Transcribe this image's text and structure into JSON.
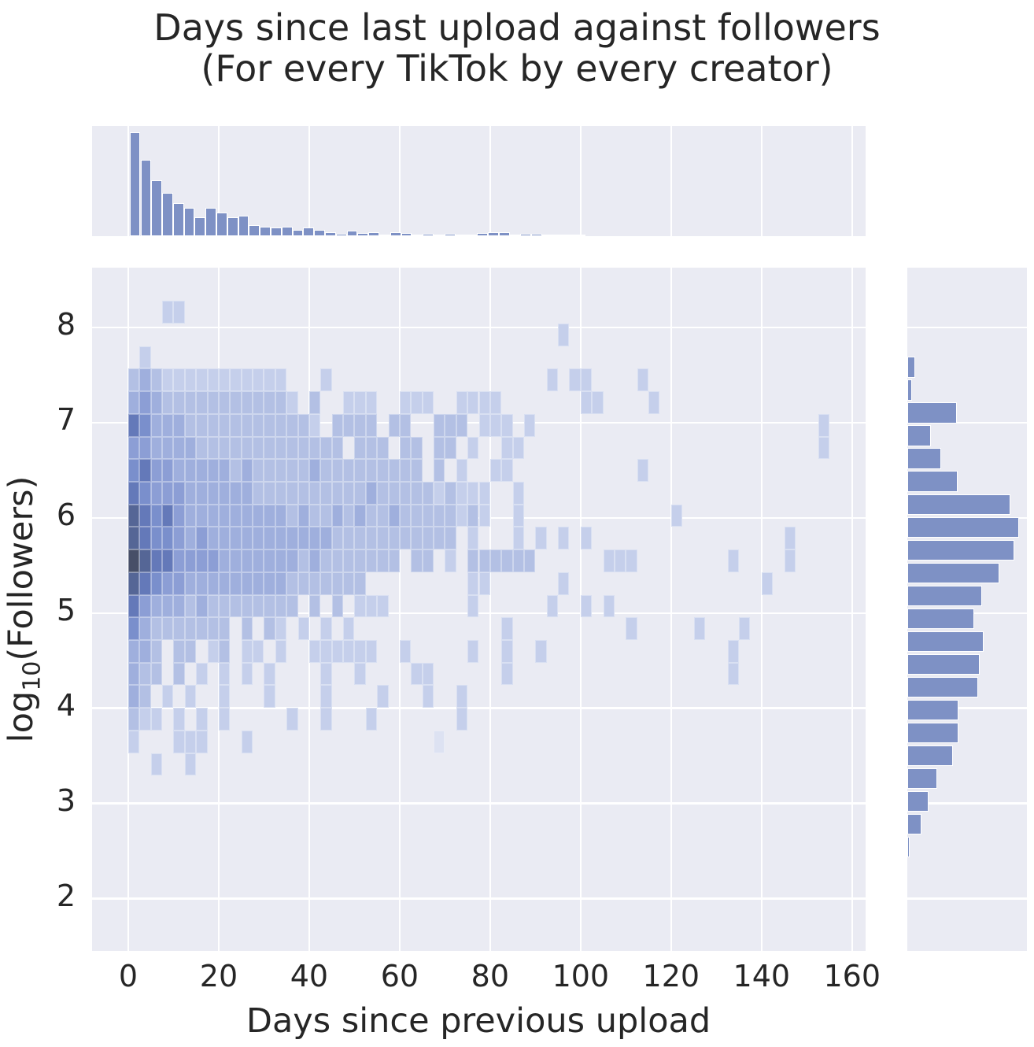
{
  "title": {
    "line1": "Days since last upload against followers",
    "line2": "(For every TikTok by every creator)"
  },
  "axes": {
    "x_label": "Days since previous upload",
    "y_label": {
      "prefix": "log",
      "subscript": "10",
      "suffix": "(Followers)"
    },
    "x_ticks": [
      0,
      20,
      40,
      60,
      80,
      100,
      120,
      140,
      160
    ],
    "y_ticks": [
      8,
      7,
      6,
      5,
      4,
      3,
      2
    ],
    "x_range": [
      -8,
      163
    ],
    "y_range": [
      1.45,
      8.63
    ]
  },
  "colors": {
    "plot_background": "#eaebf3",
    "grid_line": "#ffffff",
    "marginal_bar_fill": "#7e91c5",
    "marginal_bar_edge": "#ffffff",
    "text": "#262626",
    "heat_levels": {
      "1": "#dde2f2",
      "2": "#c5cfeb",
      "3": "#b3c0e4",
      "4": "#9fafdd",
      "5": "#8c9ed5",
      "6": "#7a8fcc",
      "7": "#6479b9",
      "8": "#556696",
      "9": "#474f68"
    }
  },
  "chart_data": {
    "type": "heatmap",
    "title": "Days since last upload against followers (For every TikTok by every creator)",
    "xlabel": "Days since previous upload",
    "ylabel": "log10(Followers)",
    "grid": "white-on-grey, seaborn darkgrid style",
    "joint": {
      "description": "2D histogram; digit = relative density 0(empty)-9(max); columns are 2.5-day bins from day 0, rows are 0.2375 log-unit bins from log10(followers)=8.28 downward",
      "x_bin_days": 2.5,
      "x_start_day": 0,
      "y_top_log": 8.28,
      "y_bin_log": 0.2375,
      "rows": [
        "0002200000000000000000000000000000000000000000000000000000000000",
        "0000000000000000000000000000000000000020000000000000000000000000",
        "0200000000000000000000000000000000000000000000000000000000000000",
        "3432222222222200020000000000000000000202200002000000000000000000",
        "4543333333333320300222002220022220000000220000200000000000000000",
        "7644433333333333203333033003330222020000000000000000000000000200",
        "5544443333333333333033303303302002200000000000000000000000000200",
        "6755444443433333433333333303020022000000000002000000000000000000",
        "7655544444433333333334333332322200200000000000000000000000000000",
        "8767544444444434334343343333323200200000000000002000000000000000",
        "8766545444444444443333333333302000202020200000000000000000200000",
        "9877555544444443433333330330203333330000002220000000020000200000",
        "8765544444444433333330000000002200000020000000000000000020000000",
        "7544434333333330303022200000002000000200202000000000000000000000",
        "6433333330303202020200000000000002000000000020000020002000000000",
        "4430330230220200222222002000002002002000000000000000020000000000",
        "4330302020202000020020000220000002000000000000000000020000000000",
        "4302020020002000020000200020020000000000000000000000000000000000",
        "3220202020000020020002000000020000000000000000000000000000000000",
        "2000222000200000000000000001000000000000000000000000000000000000",
        "0020020000000000000000000000000000000000000000000000000000000000"
      ]
    },
    "top_marginal": {
      "type": "bar",
      "orientation": "vertical",
      "description": "marginal histogram of days since previous upload, normalized to tallest bar",
      "x_start_day": 0.3,
      "x_bin_days": 2.4,
      "max_bar_fraction_of_panel": 0.94,
      "values_norm": [
        1.0,
        0.74,
        0.54,
        0.42,
        0.32,
        0.27,
        0.18,
        0.27,
        0.23,
        0.18,
        0.2,
        0.11,
        0.09,
        0.08,
        0.09,
        0.06,
        0.08,
        0.06,
        0.04,
        0.02,
        0.05,
        0.03,
        0.04,
        0.01,
        0.04,
        0.03,
        0.01,
        0.02,
        0.01,
        0.02,
        0.01,
        0.01,
        0.03,
        0.04,
        0.04,
        0.01,
        0.02,
        0.02,
        0.01,
        0.01,
        0.01,
        0.01
      ]
    },
    "right_marginal": {
      "type": "bar",
      "orientation": "horizontal",
      "description": "marginal histogram of log10(followers), top bin upper edge at log=7.70, bins descend by 0.24; normalized to longest bar",
      "y_top_log": 7.7,
      "y_bin_log": 0.24,
      "max_bar_fraction_of_panel": 0.935,
      "values_norm": [
        0.07,
        0.04,
        0.44,
        0.21,
        0.3,
        0.45,
        0.92,
        1.0,
        0.96,
        0.82,
        0.67,
        0.6,
        0.68,
        0.65,
        0.63,
        0.46,
        0.46,
        0.41,
        0.27,
        0.19,
        0.13,
        0.02
      ]
    }
  }
}
